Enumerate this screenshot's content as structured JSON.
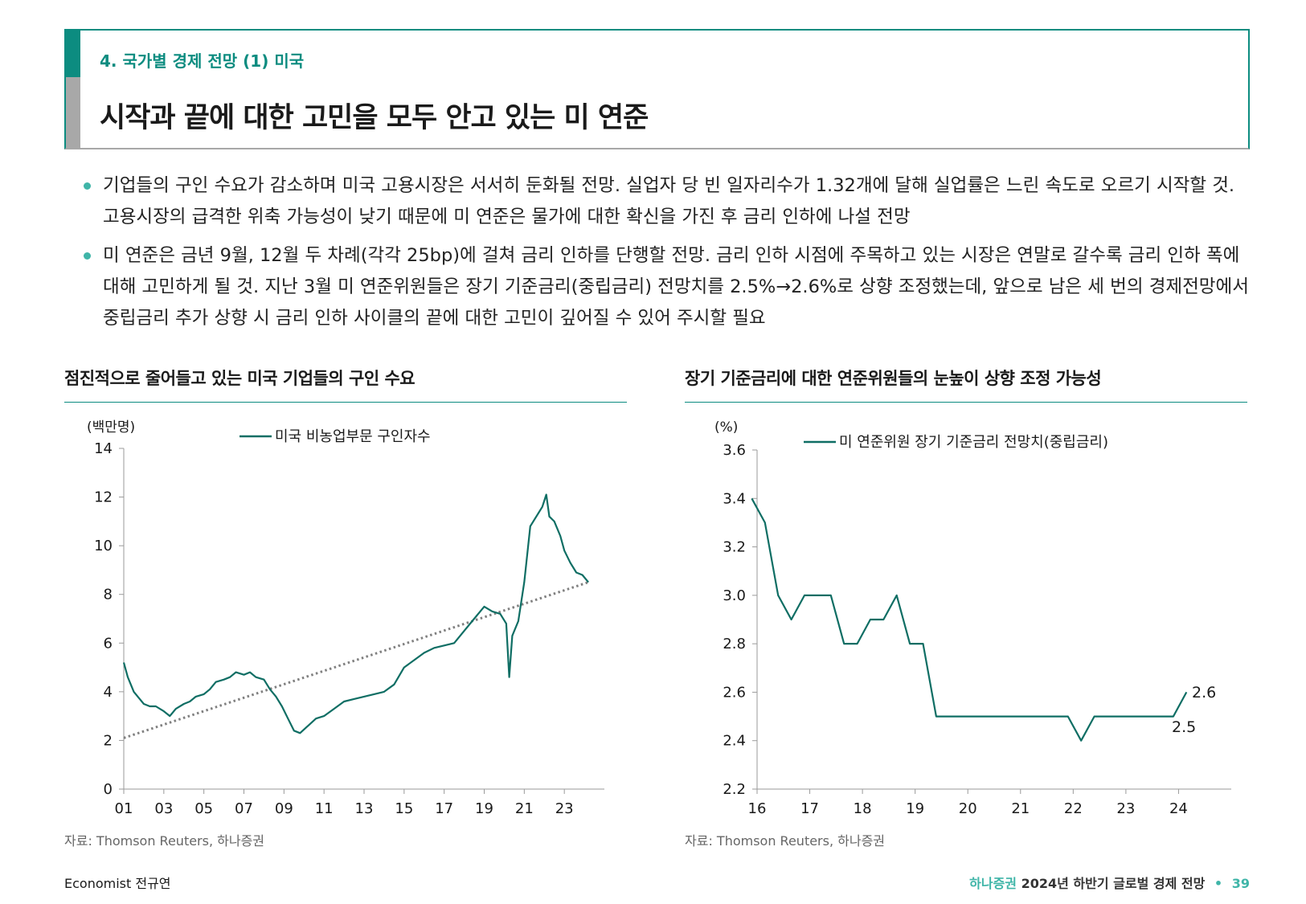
{
  "header": {
    "section_label": "4. 국가별 경제 전망 (1) 미국",
    "title": "시작과 끝에 대한 고민을 모두 안고 있는 미 연준"
  },
  "bullets": [
    "기업들의 구인 수요가 감소하며 미국 고용시장은 서서히 둔화될 전망. 실업자 당 빈 일자리수가 1.32개에 달해 실업률은 느린 속도로 오르기 시작할 것. 고용시장의 급격한 위축 가능성이 낮기 때문에 미 연준은 물가에 대한 확신을 가진 후 금리 인하에 나설 전망",
    "미 연준은 금년 9월, 12월 두 차례(각각 25bp)에 걸쳐 금리 인하를 단행할 전망. 금리 인하 시점에 주목하고 있는 시장은 연말로 갈수록 금리 인하 폭에 대해 고민하게 될 것. 지난 3월 미 연준위원들은 장기 기준금리(중립금리) 전망치를 2.5%→2.6%로 상향 조정했는데, 앞으로 남은 세 번의 경제전망에서 중립금리 추가 상향 시 금리 인하 사이클의 끝에 대한 고민이 깊어질 수 있어 주시할 필요"
  ],
  "colors": {
    "accent": "#0c8c80",
    "bullet": "#3fb5a8",
    "series": "#0f6e64",
    "trend": "#808080"
  },
  "chart_data": [
    {
      "type": "line",
      "title": "점진적으로 줄어들고 있는 미국 기업들의 구인 수요",
      "unit_label": "(백만명)",
      "legend": "미국 비농업부문 구인자수",
      "ylim": [
        0,
        14
      ],
      "yticks": [
        "0",
        "2",
        "4",
        "6",
        "8",
        "10",
        "12",
        "14"
      ],
      "xlim": [
        2001,
        2025
      ],
      "xticks": [
        "01",
        "03",
        "05",
        "07",
        "09",
        "11",
        "13",
        "15",
        "17",
        "19",
        "21",
        "23"
      ],
      "trendline": {
        "x": [
          2001,
          2024.2
        ],
        "y": [
          2.1,
          8.5
        ]
      },
      "series": [
        {
          "name": "미국 비농업부문 구인자수",
          "x": [
            2001.0,
            2001.2,
            2001.5,
            2001.8,
            2002.0,
            2002.3,
            2002.6,
            2003.0,
            2003.3,
            2003.6,
            2004.0,
            2004.3,
            2004.6,
            2005.0,
            2005.3,
            2005.6,
            2006.0,
            2006.3,
            2006.6,
            2007.0,
            2007.3,
            2007.6,
            2008.0,
            2008.3,
            2008.6,
            2008.9,
            2009.2,
            2009.5,
            2009.8,
            2010.2,
            2010.6,
            2011.0,
            2011.5,
            2012.0,
            2012.5,
            2013.0,
            2013.5,
            2014.0,
            2014.5,
            2015.0,
            2015.5,
            2016.0,
            2016.5,
            2017.0,
            2017.5,
            2018.0,
            2018.5,
            2019.0,
            2019.4,
            2019.8,
            2020.1,
            2020.25,
            2020.4,
            2020.7,
            2021.0,
            2021.3,
            2021.6,
            2021.9,
            2022.1,
            2022.25,
            2022.5,
            2022.8,
            2023.0,
            2023.3,
            2023.6,
            2023.9,
            2024.2
          ],
          "y": [
            5.2,
            4.6,
            4.0,
            3.7,
            3.5,
            3.4,
            3.4,
            3.2,
            3.0,
            3.3,
            3.5,
            3.6,
            3.8,
            3.9,
            4.1,
            4.4,
            4.5,
            4.6,
            4.8,
            4.7,
            4.8,
            4.6,
            4.5,
            4.1,
            3.8,
            3.4,
            2.9,
            2.4,
            2.3,
            2.6,
            2.9,
            3.0,
            3.3,
            3.6,
            3.7,
            3.8,
            3.9,
            4.0,
            4.3,
            5.0,
            5.3,
            5.6,
            5.8,
            5.9,
            6.0,
            6.5,
            7.0,
            7.5,
            7.3,
            7.2,
            6.8,
            4.6,
            6.3,
            6.9,
            8.5,
            10.8,
            11.2,
            11.6,
            12.1,
            11.2,
            11.0,
            10.4,
            9.8,
            9.3,
            8.9,
            8.8,
            8.5
          ]
        }
      ]
    },
    {
      "type": "line",
      "title": "장기 기준금리에 대한 연준위원들의 눈높이 상향 조정 가능성",
      "unit_label": "(%)",
      "legend": "미 연준위원 장기 기준금리 전망치(중립금리)",
      "ylim": [
        2.2,
        3.6
      ],
      "yticks": [
        "2.2",
        "2.4",
        "2.6",
        "2.8",
        "3.0",
        "3.2",
        "3.4",
        "3.6"
      ],
      "xlim": [
        16,
        25
      ],
      "xticks": [
        "16",
        "17",
        "18",
        "19",
        "20",
        "21",
        "22",
        "23",
        "24"
      ],
      "data_labels": [
        "2.6",
        "2.5"
      ],
      "series": [
        {
          "name": "미 연준위원 장기 기준금리 전망치(중립금리)",
          "x": [
            15.9,
            16.15,
            16.4,
            16.65,
            16.9,
            17.15,
            17.4,
            17.65,
            17.9,
            18.15,
            18.4,
            18.65,
            18.9,
            19.15,
            19.4,
            19.65,
            19.9,
            20.15,
            20.4,
            20.65,
            20.9,
            21.15,
            21.4,
            21.65,
            21.9,
            22.15,
            22.4,
            22.65,
            22.9,
            23.15,
            23.4,
            23.65,
            23.9,
            24.15
          ],
          "y": [
            3.4,
            3.3,
            3.0,
            2.9,
            3.0,
            3.0,
            3.0,
            2.8,
            2.8,
            2.9,
            2.9,
            3.0,
            2.8,
            2.8,
            2.5,
            2.5,
            2.5,
            2.5,
            2.5,
            2.5,
            2.5,
            2.5,
            2.5,
            2.5,
            2.5,
            2.4,
            2.5,
            2.5,
            2.5,
            2.5,
            2.5,
            2.5,
            2.5,
            2.6
          ]
        }
      ]
    }
  ],
  "sources": [
    "자료: Thomson Reuters, 하나증권",
    "자료: Thomson Reuters, 하나증권"
  ],
  "footer": {
    "author": "Economist 전규연",
    "brand": "하나증권",
    "report": "2024년 하반기 글로벌 경제 전망",
    "separator": "•",
    "page": "39"
  }
}
